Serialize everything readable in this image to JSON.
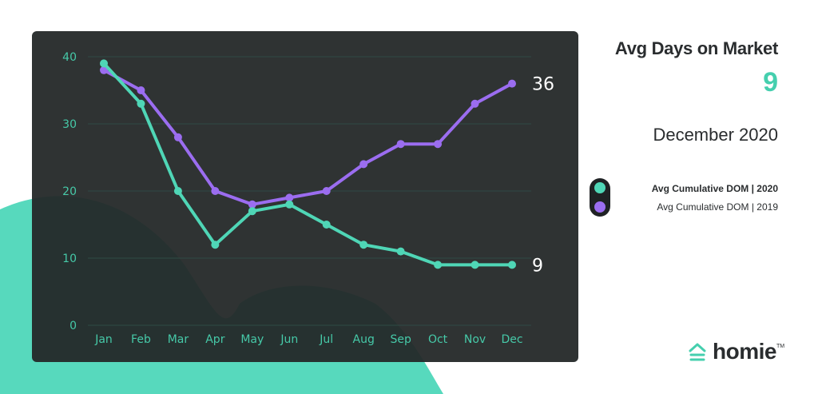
{
  "title": "Avg Days on Market",
  "current_value": "9",
  "period": "December 2020",
  "colors": {
    "series_2020": "#4fd6b6",
    "series_2019": "#9b6df0",
    "panel": "#242828",
    "accent_teal": "#45cfae",
    "text_dark": "#2a2d2f"
  },
  "legend": [
    {
      "label": "Avg Cumulative DOM  |  2020",
      "color": "#4fd6b6",
      "bold": true
    },
    {
      "label": "Avg Cumulative DOM  |  2019",
      "color": "#9b6df0",
      "bold": false
    }
  ],
  "brand": {
    "name": "homie",
    "tm": "TM",
    "icon": "house-icon"
  },
  "chart_data": {
    "type": "line",
    "categories": [
      "Jan",
      "Feb",
      "Mar",
      "Apr",
      "May",
      "Jun",
      "Jul",
      "Aug",
      "Sep",
      "Oct",
      "Nov",
      "Dec"
    ],
    "series": [
      {
        "name": "Avg Cumulative DOM  |  2020",
        "values": [
          39,
          33,
          20,
          12,
          17,
          18,
          15,
          12,
          11,
          9,
          9,
          9
        ],
        "color": "#4fd6b6",
        "end_label": "9"
      },
      {
        "name": "Avg Cumulative DOM  |  2019",
        "values": [
          38,
          35,
          28,
          20,
          18,
          19,
          20,
          24,
          27,
          27,
          33,
          36
        ],
        "color": "#9b6df0",
        "end_label": "36"
      }
    ],
    "yticks": [
      0,
      10,
      20,
      30,
      40
    ],
    "ylim": [
      0,
      40
    ],
    "grid": true,
    "legend_position": "right"
  }
}
